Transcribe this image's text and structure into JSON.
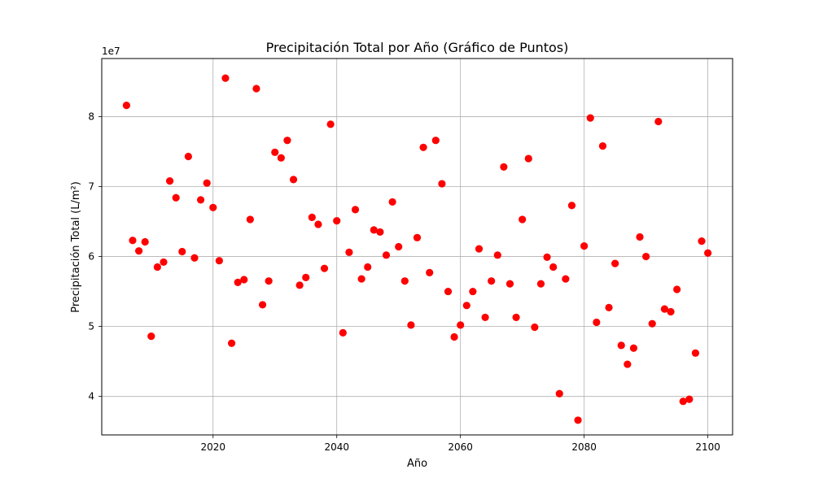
{
  "chart_data": {
    "type": "scatter",
    "title": "Precipitación Total por Año (Gráfico de Puntos)",
    "xlabel": "Año",
    "ylabel": "Precipitación Total (L/m²)",
    "y_offset_label": "1e7",
    "y_unit_multiplier": 10000000,
    "xlim": [
      2002,
      2104
    ],
    "ylim": [
      34500000,
      88300000
    ],
    "x_ticks": [
      2020,
      2040,
      2060,
      2080,
      2100
    ],
    "y_ticks": [
      4,
      5,
      6,
      7,
      8
    ],
    "grid": true,
    "marker_color": "#ff0000",
    "x": [
      2006,
      2007,
      2008,
      2009,
      2010,
      2011,
      2012,
      2013,
      2014,
      2015,
      2016,
      2017,
      2018,
      2019,
      2020,
      2021,
      2022,
      2023,
      2024,
      2025,
      2026,
      2027,
      2028,
      2029,
      2030,
      2031,
      2032,
      2033,
      2034,
      2035,
      2036,
      2037,
      2038,
      2039,
      2040,
      2041,
      2042,
      2043,
      2044,
      2045,
      2046,
      2047,
      2048,
      2049,
      2050,
      2051,
      2052,
      2053,
      2054,
      2055,
      2056,
      2057,
      2058,
      2059,
      2060,
      2061,
      2062,
      2063,
      2064,
      2065,
      2066,
      2067,
      2068,
      2069,
      2070,
      2071,
      2072,
      2073,
      2074,
      2075,
      2076,
      2077,
      2078,
      2079,
      2080,
      2081,
      2082,
      2083,
      2084,
      2085,
      2086,
      2087,
      2088,
      2089,
      2090,
      2091,
      2092,
      2093,
      2094,
      2095,
      2096,
      2097,
      2098,
      2099,
      2100
    ],
    "y": [
      81600000,
      62300000,
      60800000,
      62100000,
      48600000,
      58500000,
      59200000,
      70800000,
      68400000,
      60700000,
      74300000,
      59800000,
      68100000,
      70500000,
      67000000,
      59400000,
      85500000,
      47600000,
      56300000,
      56700000,
      65300000,
      84000000,
      53100000,
      56500000,
      74900000,
      74100000,
      76600000,
      71000000,
      55900000,
      57000000,
      65600000,
      64600000,
      58300000,
      78900000,
      65100000,
      49100000,
      60600000,
      66700000,
      56800000,
      58500000,
      63800000,
      63500000,
      60200000,
      67800000,
      61400000,
      56500000,
      50200000,
      62700000,
      75600000,
      57700000,
      76600000,
      70400000,
      55000000,
      48500000,
      50200000,
      53000000,
      55000000,
      61100000,
      51300000,
      56500000,
      60200000,
      72800000,
      56100000,
      51300000,
      65300000,
      74000000,
      49900000,
      56100000,
      59900000,
      58500000,
      40400000,
      56800000,
      67300000,
      36600000,
      61500000,
      79800000,
      50600000,
      75800000,
      52700000,
      59000000,
      47300000,
      44600000,
      46900000,
      62800000,
      60000000,
      50400000,
      79300000,
      52500000,
      52100000,
      55300000,
      39300000,
      39600000,
      46200000,
      62200000,
      60500000
    ]
  }
}
